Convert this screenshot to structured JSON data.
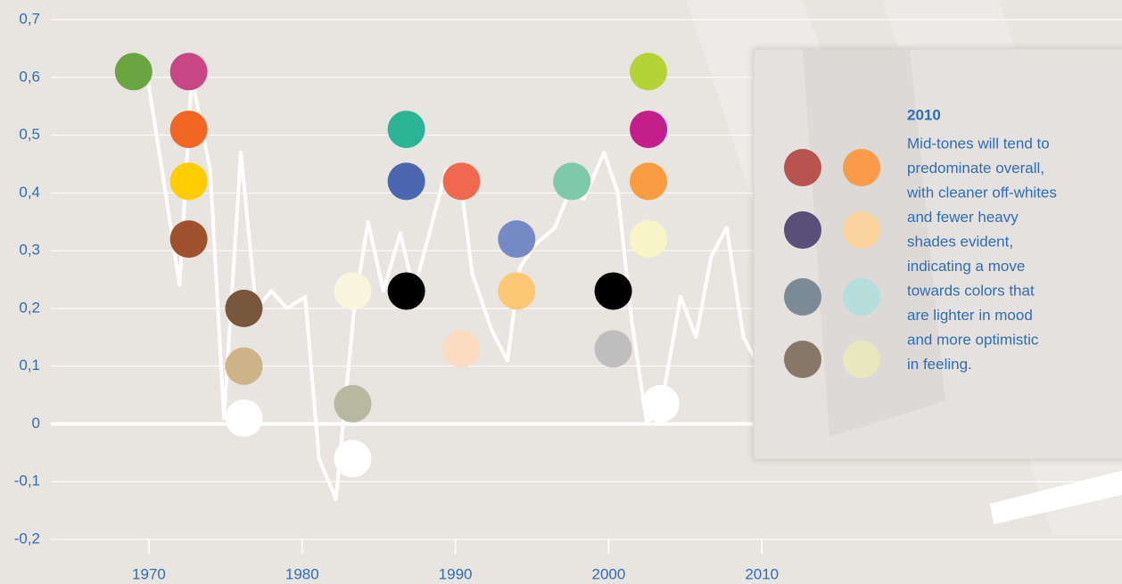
{
  "chart_data": {
    "type": "line",
    "xlim": [
      1963.6,
      2033.5
    ],
    "ylim": [
      -0.2,
      0.7
    ],
    "xticks": [
      1970,
      1980,
      1990,
      2000,
      2010
    ],
    "yticks": [
      {
        "value": 0.7,
        "label": "0,7"
      },
      {
        "value": 0.6,
        "label": "0,6"
      },
      {
        "value": 0.5,
        "label": "0,5"
      },
      {
        "value": 0.4,
        "label": "0,4"
      },
      {
        "value": 0.3,
        "label": "0,3"
      },
      {
        "value": 0.2,
        "label": "0,2"
      },
      {
        "value": 0.1,
        "label": "0,1"
      },
      0,
      {
        "value": -0.1,
        "label": "-0,1"
      },
      {
        "value": -0.2,
        "label": "-0,2"
      }
    ],
    "grid": true,
    "series": [
      {
        "color": "#ffffff",
        "x": [
          1969,
          1969.9,
          1970.8,
          1972,
          1972.8,
          1974,
          1974.9,
          1976,
          1977,
          1978,
          1979,
          1980.2,
          1981.1,
          1982.2,
          1983.4,
          1984.3,
          1985.3,
          1986.4,
          1987.3,
          1988.5,
          1989.4,
          1990.3,
          1991.1,
          1992.4,
          1993.4,
          1994.2,
          1995.2,
          1996.5,
          1997.4,
          1998.4,
          1999.7,
          2000.6,
          2001.5,
          2002.5,
          2003.5,
          2004.7,
          2005.7,
          2006.7,
          2007.7,
          2008.8,
          2009.8
        ],
        "values": [
          0.61,
          0.6,
          0.45,
          0.24,
          0.6,
          0.44,
          0.01,
          0.47,
          0.2,
          0.23,
          0.2,
          0.22,
          -0.06,
          -0.13,
          0.2,
          0.35,
          0.23,
          0.33,
          0.23,
          0.35,
          0.44,
          0.43,
          0.26,
          0.16,
          0.11,
          0.27,
          0.31,
          0.34,
          0.4,
          0.39,
          0.47,
          0.4,
          0.18,
          0.0,
          0.04,
          0.22,
          0.15,
          0.29,
          0.34,
          0.15,
          0.1
        ]
      }
    ],
    "points": {
      "x": [
        1969,
        1972.6,
        1972.6,
        1972.6,
        1972.6,
        1976.2,
        1976.2,
        1976.2,
        1983.3,
        1983.3,
        1983.3,
        1986.8,
        1986.8,
        1986.8,
        1990.4,
        1990.4,
        1994,
        1994,
        1997.6,
        2000.3,
        2000.3,
        2002.6,
        2002.6,
        2002.6,
        2002.6,
        2003.4
      ],
      "values": [
        0.61,
        0.61,
        0.51,
        0.42,
        0.32,
        0.2,
        0.1,
        0.01,
        0.23,
        0.035,
        -0.06,
        0.51,
        0.42,
        0.23,
        0.42,
        0.13,
        0.32,
        0.23,
        0.42,
        0.23,
        0.13,
        0.61,
        0.51,
        0.42,
        0.32,
        0.035
      ],
      "colors": [
        "#6aa53f",
        "#c94685",
        "#f26522",
        "#ffcc00",
        "#a0522d",
        "#7a573b",
        "#ccb488",
        "#ffffff",
        "#f8f6dc",
        "#b8b8a0",
        "#ffffff",
        "#2bb594",
        "#4a66b0",
        "#000000",
        "#f06850",
        "#fcdcc0",
        "#7589c6",
        "#fdc875",
        "#7ec9a8",
        "#000000",
        "#bebebe",
        "#b4d334",
        "#c41e8c",
        "#f99b3e",
        "#f8f4c8",
        "#ffffff"
      ]
    },
    "annotation": {
      "title": "2010",
      "lines": [
        "Mid-tones will tend to",
        "predominate overall,",
        "with cleaner off-whites",
        "and fewer heavy",
        "shades evident,",
        "indicating a move",
        "towards colors that",
        "are lighter in mood",
        "and more optimistic",
        "in feeling."
      ],
      "swatches": [
        "#b85450",
        "#f99b4a",
        "#5a4f7a",
        "#fbd5a0",
        "#7c8a95",
        "#b6dedd",
        "#877766",
        "#e8e8bf"
      ]
    }
  }
}
